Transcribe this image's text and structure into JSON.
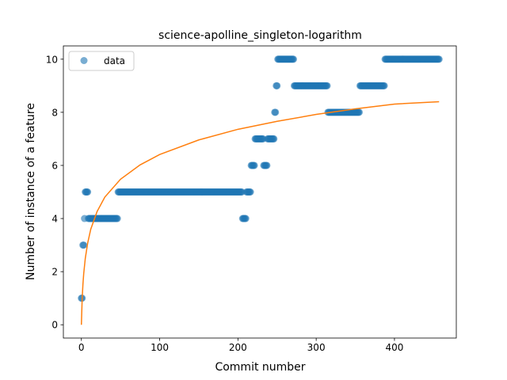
{
  "chart_data": {
    "type": "scatter",
    "title": "science-apolline_singleton-logarithm",
    "xlabel": "Commit number",
    "ylabel": "Number of instance of a feature",
    "xlim": [
      -23,
      479
    ],
    "ylim": [
      -0.5,
      10.5
    ],
    "x_ticks": [
      0,
      100,
      200,
      300,
      400
    ],
    "y_ticks": [
      0,
      2,
      4,
      6,
      8,
      10
    ],
    "grid": false,
    "legend": {
      "placement": "top-left",
      "entries": [
        "data"
      ]
    },
    "colors": {
      "data": "#1f77b4",
      "fit": "#ff7f0e"
    },
    "series": [
      {
        "name": "data",
        "kind": "scatter",
        "segments": [
          {
            "x_start": 0,
            "x_end": 1,
            "y": 1
          },
          {
            "x_start": 2,
            "x_end": 3,
            "y": 3
          },
          {
            "x_start": 4,
            "x_end": 4,
            "y": 4
          },
          {
            "x_start": 5,
            "x_end": 8,
            "y": 5
          },
          {
            "x_start": 9,
            "x_end": 46,
            "y": 4
          },
          {
            "x_start": 47,
            "x_end": 205,
            "y": 5
          },
          {
            "x_start": 206,
            "x_end": 210,
            "y": 4
          },
          {
            "x_start": 211,
            "x_end": 216,
            "y": 5
          },
          {
            "x_start": 217,
            "x_end": 221,
            "y": 6
          },
          {
            "x_start": 222,
            "x_end": 232,
            "y": 7
          },
          {
            "x_start": 233,
            "x_end": 237,
            "y": 6
          },
          {
            "x_start": 238,
            "x_end": 246,
            "y": 7
          },
          {
            "x_start": 247,
            "x_end": 248,
            "y": 8
          },
          {
            "x_start": 249,
            "x_end": 250,
            "y": 9
          },
          {
            "x_start": 251,
            "x_end": 271,
            "y": 10
          },
          {
            "x_start": 272,
            "x_end": 314,
            "y": 9
          },
          {
            "x_start": 315,
            "x_end": 355,
            "y": 8
          },
          {
            "x_start": 356,
            "x_end": 387,
            "y": 9
          },
          {
            "x_start": 388,
            "x_end": 457,
            "y": 10
          }
        ]
      },
      {
        "kind": "line",
        "points": [
          [
            0,
            0
          ],
          [
            1,
            0.97
          ],
          [
            2,
            1.53
          ],
          [
            3,
            1.93
          ],
          [
            5,
            2.5
          ],
          [
            8,
            3.07
          ],
          [
            12,
            3.6
          ],
          [
            20,
            4.26
          ],
          [
            30,
            4.81
          ],
          [
            50,
            5.48
          ],
          [
            75,
            6.02
          ],
          [
            100,
            6.41
          ],
          [
            150,
            6.96
          ],
          [
            200,
            7.36
          ],
          [
            250,
            7.66
          ],
          [
            300,
            7.92
          ],
          [
            350,
            8.13
          ],
          [
            400,
            8.31
          ],
          [
            457,
            8.4
          ]
        ]
      }
    ]
  }
}
